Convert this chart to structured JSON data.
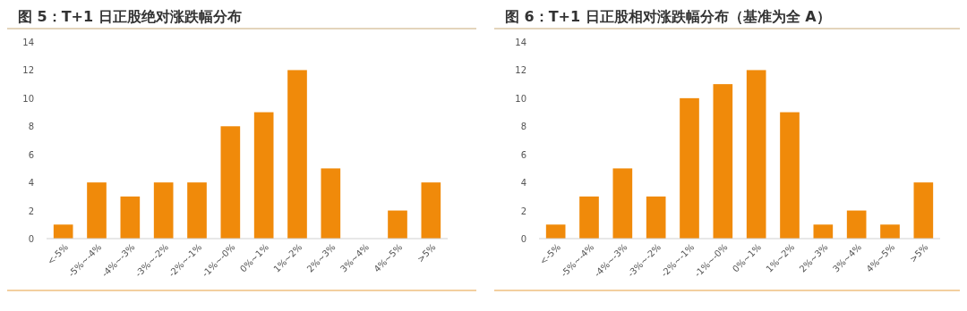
{
  "chart_data": [
    {
      "type": "bar",
      "title": "图 5：T+1 日正股绝对涨跌幅分布",
      "categories": [
        "<-5%",
        "-5%~-4%",
        "-4%~-3%",
        "-3%~-2%",
        "-2%~-1%",
        "-1%~-0%",
        "0%~1%",
        "1%~2%",
        "2%~3%",
        "3%~4%",
        "4%~5%",
        ">5%"
      ],
      "values": [
        1,
        4,
        3,
        4,
        4,
        8,
        9,
        12,
        5,
        0,
        2,
        4
      ],
      "color": "#f08a0a",
      "ylim": [
        0,
        14
      ],
      "yticks": [
        0,
        2,
        4,
        6,
        8,
        10,
        12,
        14
      ],
      "grid": false
    },
    {
      "type": "bar",
      "title": "图 6：T+1 日正股相对涨跌幅分布（基准为全 A）",
      "categories": [
        "<-5%",
        "-5%~-4%",
        "-4%~-3%",
        "-3%~-2%",
        "-2%~-1%",
        "-1%~-0%",
        "0%~1%",
        "1%~2%",
        "2%~3%",
        "3%~4%",
        "4%~5%",
        ">5%"
      ],
      "values": [
        1,
        3,
        5,
        3,
        10,
        11,
        12,
        9,
        1,
        2,
        1,
        4
      ],
      "color": "#f08a0a",
      "ylim": [
        0,
        14
      ],
      "yticks": [
        0,
        2,
        4,
        6,
        8,
        10,
        12,
        14
      ],
      "grid": false
    }
  ]
}
